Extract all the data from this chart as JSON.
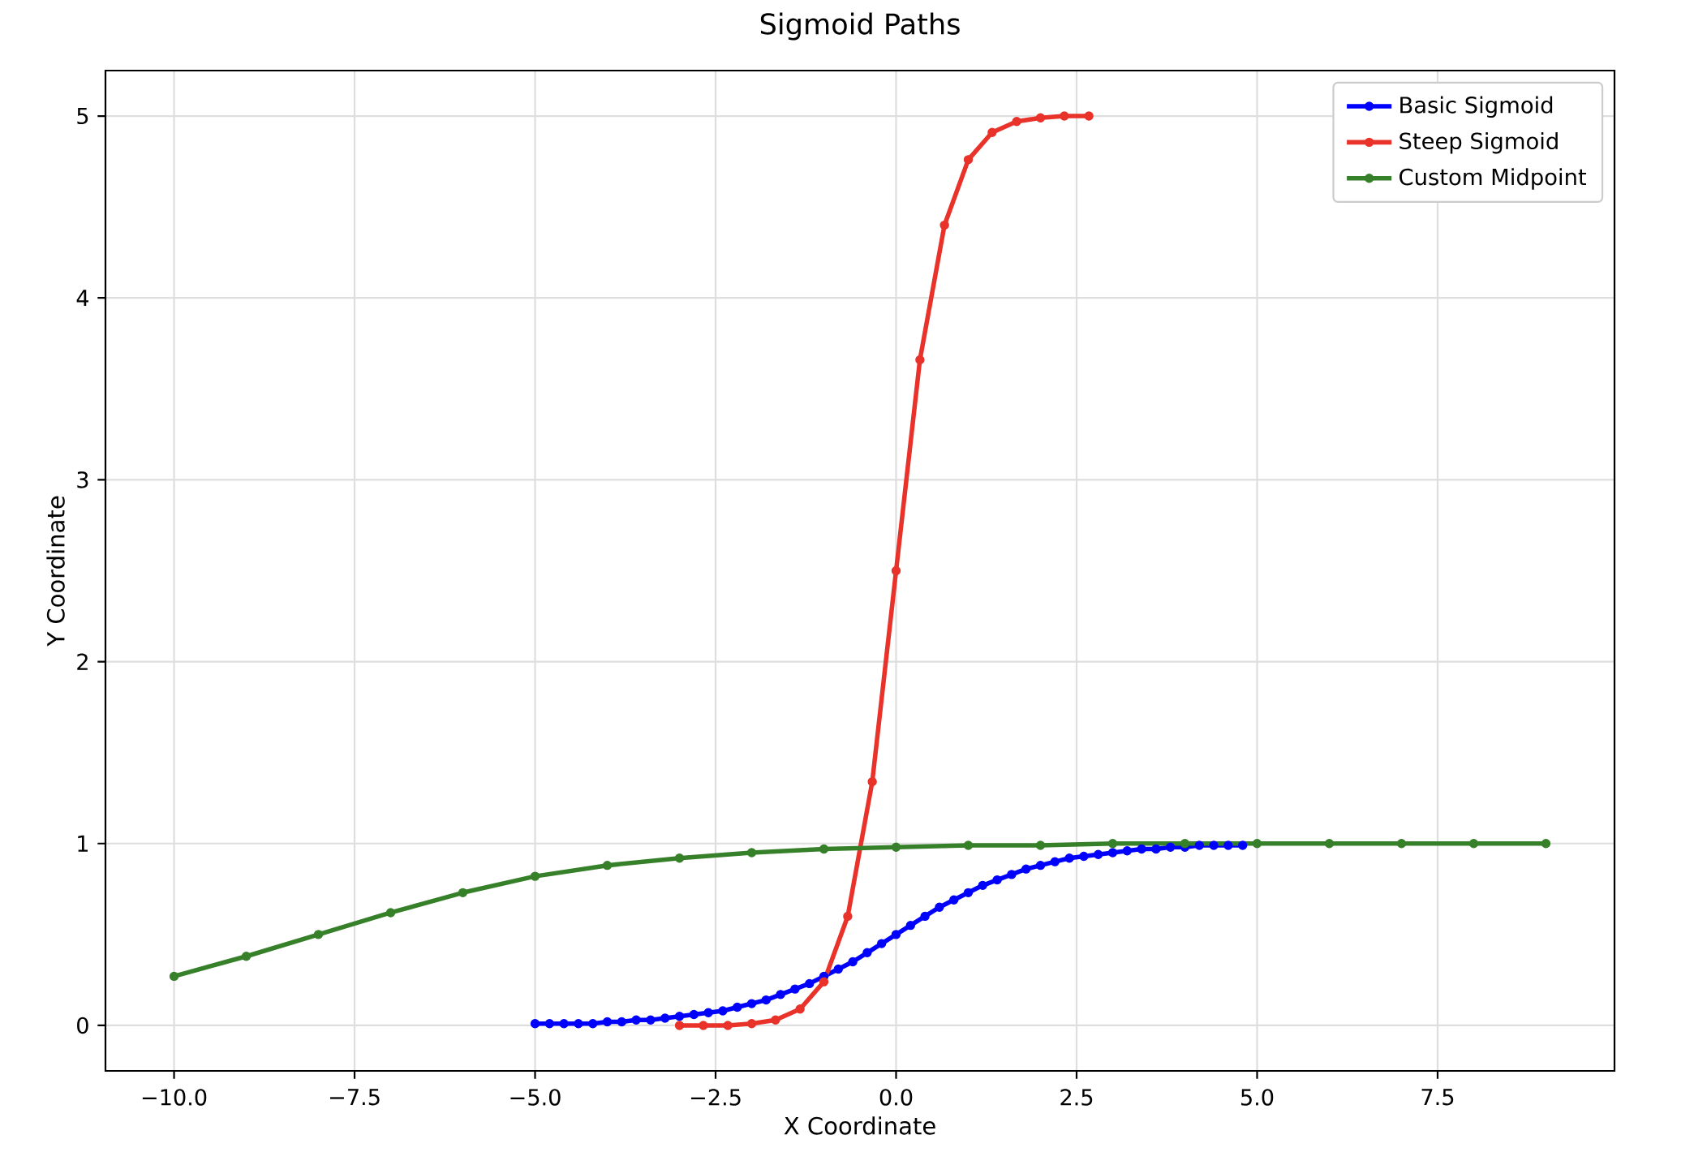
{
  "chart_data": {
    "type": "line",
    "title": "Sigmoid Paths",
    "xlabel": "X Coordinate",
    "ylabel": "Y Coordinate",
    "series": [
      {
        "name": "Basic Sigmoid",
        "color": "#0000ff",
        "x": [
          -5.0,
          -4.8,
          -4.6,
          -4.4,
          -4.2,
          -4.0,
          -3.8,
          -3.6,
          -3.4,
          -3.2,
          -3.0,
          -2.8,
          -2.6,
          -2.4,
          -2.2,
          -2.0,
          -1.8,
          -1.6,
          -1.4,
          -1.2,
          -1.0,
          -0.8,
          -0.6,
          -0.4,
          -0.2,
          0.0,
          0.2,
          0.4,
          0.6,
          0.8,
          1.0,
          1.2,
          1.4,
          1.6,
          1.8,
          2.0,
          2.2,
          2.4,
          2.6,
          2.8,
          3.0,
          3.2,
          3.4,
          3.6,
          3.8,
          4.0,
          4.2,
          4.4,
          4.6,
          4.8
        ],
        "values": [
          0.01,
          0.01,
          0.01,
          0.01,
          0.01,
          0.02,
          0.02,
          0.03,
          0.03,
          0.04,
          0.05,
          0.06,
          0.07,
          0.08,
          0.1,
          0.12,
          0.14,
          0.17,
          0.2,
          0.23,
          0.27,
          0.31,
          0.35,
          0.4,
          0.45,
          0.5,
          0.55,
          0.6,
          0.65,
          0.69,
          0.73,
          0.77,
          0.8,
          0.83,
          0.86,
          0.88,
          0.9,
          0.92,
          0.93,
          0.94,
          0.95,
          0.96,
          0.97,
          0.97,
          0.98,
          0.98,
          0.99,
          0.99,
          0.99,
          0.99
        ]
      },
      {
        "name": "Steep Sigmoid",
        "color": "#e8322a",
        "x": [
          -3.0,
          -2.67,
          -2.33,
          -2.0,
          -1.67,
          -1.33,
          -1.0,
          -0.67,
          -0.33,
          0.0,
          0.33,
          0.67,
          1.0,
          1.33,
          1.67,
          2.0,
          2.33,
          2.67
        ],
        "values": [
          0.0,
          0.0,
          0.0,
          0.01,
          0.03,
          0.09,
          0.24,
          0.6,
          1.34,
          2.5,
          3.66,
          4.4,
          4.76,
          4.91,
          4.97,
          4.99,
          5.0,
          5.0
        ]
      },
      {
        "name": "Custom Midpoint",
        "color": "#37802a",
        "x": [
          -10,
          -9,
          -8,
          -7,
          -6,
          -5,
          -4,
          -3,
          -2,
          -1,
          0,
          1,
          2,
          3,
          4,
          5,
          6,
          7,
          8,
          9
        ],
        "values": [
          0.27,
          0.38,
          0.5,
          0.62,
          0.73,
          0.82,
          0.88,
          0.92,
          0.95,
          0.97,
          0.98,
          0.99,
          0.99,
          1.0,
          1.0,
          1.0,
          1.0,
          1.0,
          1.0,
          1.0
        ]
      }
    ],
    "xlim": [
      -10.95,
      9.95
    ],
    "ylim": [
      -0.25,
      5.25
    ],
    "xticks": [
      {
        "value": -10,
        "label": "−10.0"
      },
      {
        "value": -7.5,
        "label": "−7.5"
      },
      {
        "value": -5,
        "label": "−5.0"
      },
      {
        "value": -2.5,
        "label": "−2.5"
      },
      {
        "value": 0,
        "label": "0.0"
      },
      {
        "value": 2.5,
        "label": "2.5"
      },
      {
        "value": 5,
        "label": "5.0"
      },
      {
        "value": 7.5,
        "label": "7.5"
      }
    ],
    "yticks": [
      0,
      1,
      2,
      3,
      4,
      5
    ],
    "grid": true,
    "legend": "top right",
    "marker": "circle",
    "line_style": "solid"
  }
}
